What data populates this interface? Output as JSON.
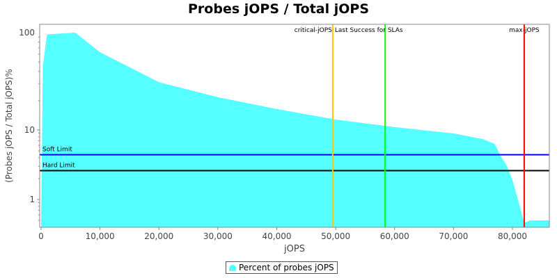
{
  "chart_data": {
    "type": "area",
    "title": "Probes jOPS / Total jOPS",
    "xlabel": "jOPS",
    "ylabel": "(Probes jOPS / Total jOPS)%",
    "y_scale": "log",
    "xlim": [
      0,
      86200
    ],
    "ylim": [
      0.41,
      130
    ],
    "x_ticks": [
      0,
      10000,
      20000,
      30000,
      40000,
      50000,
      60000,
      70000,
      80000
    ],
    "x_tick_labels": [
      "0",
      "10,000",
      "20,000",
      "30,000",
      "40,000",
      "50,000",
      "60,000",
      "70,000",
      "80,000"
    ],
    "y_ticks": [
      1,
      10,
      100
    ],
    "y_tick_labels": [
      "1",
      "10",
      "100"
    ],
    "series": [
      {
        "name": "Percent of probes jOPS",
        "color": "#55ffff",
        "x": [
          0,
          300,
          1000,
          5800,
          10000,
          20000,
          30000,
          40000,
          50000,
          60000,
          70000,
          75000,
          77000,
          78000,
          79000,
          80000,
          81000,
          82000,
          83000,
          86000
        ],
        "y": [
          0.41,
          45,
          96,
          100,
          63,
          31,
          21.7,
          16.4,
          12.8,
          10.7,
          8.9,
          7.4,
          6.3,
          4.2,
          3.1,
          1.9,
          0.95,
          0.46,
          0.5,
          0.5
        ]
      }
    ],
    "horizontal_lines": [
      {
        "label": "Soft Limit",
        "value": 4.4,
        "color": "#0000ff"
      },
      {
        "label": "Hard Limit",
        "value": 2.6,
        "color": "#000000"
      }
    ],
    "vertical_lines": [
      {
        "label": "critical-jOPS",
        "value": 49500,
        "color": "#ffc800"
      },
      {
        "label": "Last Success for SLAs",
        "value": 58400,
        "color": "#00ff00"
      },
      {
        "label": "max-jOPS",
        "value": 82000,
        "color": "#ff0000"
      }
    ],
    "legend": {
      "placement": "bottom",
      "entries": [
        "Percent of probes jOPS"
      ]
    },
    "grid": false
  }
}
